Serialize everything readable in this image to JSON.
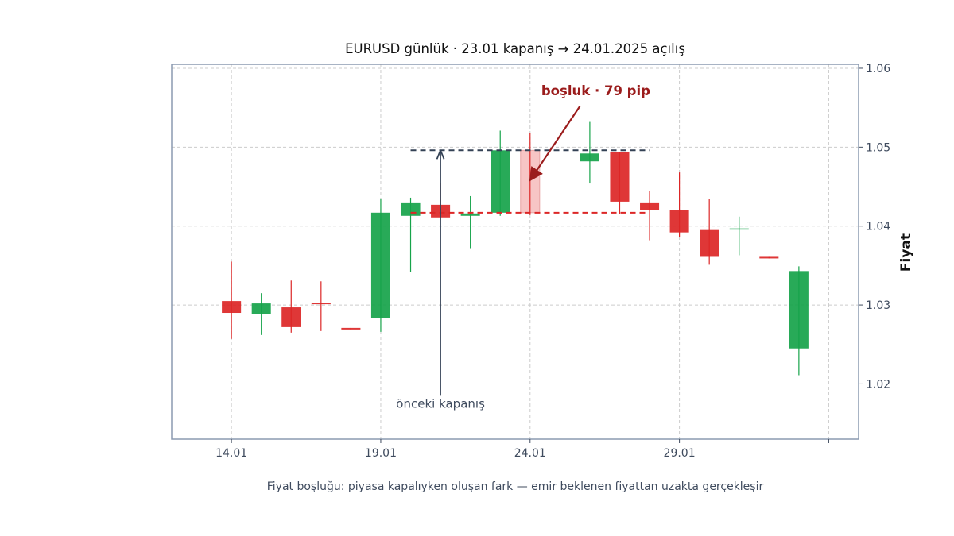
{
  "chart_data": {
    "type": "candlestick",
    "title": "EURUSD günlük · 23.01 kapanış → 24.01.2025 açılış",
    "xlabel": "",
    "ylabel": "Fiyat",
    "caption": "Fiyat boşluğu: piyasa kapalıyken oluşan fark — emir beklenen fiyattan uzakta gerçekleşir",
    "y_axis_side": "right",
    "ylim": [
      1.013,
      1.0605
    ],
    "yticks": [
      1.02,
      1.03,
      1.04,
      1.05,
      1.06
    ],
    "ytick_labels": [
      "1.02",
      "1.03",
      "1.04",
      "1.05",
      "1.06"
    ],
    "xlim": [
      -2,
      21
    ],
    "xticks": [
      0,
      5,
      10,
      15,
      20
    ],
    "xtick_labels": [
      "14.01",
      "19.01",
      "24.01",
      "29.01",
      ""
    ],
    "grid": true,
    "colors": {
      "up": "#16a34a",
      "down": "#dc2626",
      "gap_fill": "#f7c5c5",
      "prev_close_line": "#334155",
      "gap_open_line": "#dc2626",
      "annotation": "#9b1c1c"
    },
    "candles": [
      {
        "x": 0,
        "open": 1.0305,
        "high": 1.0355,
        "low": 1.0257,
        "close": 1.029
      },
      {
        "x": 1,
        "open": 1.0288,
        "high": 1.0315,
        "low": 1.0262,
        "close": 1.0302
      },
      {
        "x": 2,
        "open": 1.0297,
        "high": 1.0331,
        "low": 1.0265,
        "close": 1.0272
      },
      {
        "x": 3,
        "open": 1.0303,
        "high": 1.033,
        "low": 1.0267,
        "close": 1.0301
      },
      {
        "x": 4,
        "open": 1.0271,
        "high": 1.0271,
        "low": 1.0269,
        "close": 1.0269
      },
      {
        "x": 5,
        "open": 1.0283,
        "high": 1.0435,
        "low": 1.0266,
        "close": 1.0417
      },
      {
        "x": 6,
        "open": 1.0413,
        "high": 1.0436,
        "low": 1.0342,
        "close": 1.0429
      },
      {
        "x": 7,
        "open": 1.0427,
        "high": 1.0455,
        "low": 1.041,
        "close": 1.0411
      },
      {
        "x": 8,
        "open": 1.0413,
        "high": 1.0438,
        "low": 1.0372,
        "close": 1.0416
      },
      {
        "x": 9,
        "open": 1.0417,
        "high": 1.0521,
        "low": 1.0413,
        "close": 1.0496
      },
      {
        "x": 12,
        "open": 1.0482,
        "high": 1.0532,
        "low": 1.0454,
        "close": 1.0492
      },
      {
        "x": 13,
        "open": 1.0494,
        "high": 1.0494,
        "low": 1.0415,
        "close": 1.0431
      },
      {
        "x": 14,
        "open": 1.0429,
        "high": 1.0444,
        "low": 1.0382,
        "close": 1.042
      },
      {
        "x": 15,
        "open": 1.042,
        "high": 1.0468,
        "low": 1.0386,
        "close": 1.0392
      },
      {
        "x": 16,
        "open": 1.0395,
        "high": 1.0434,
        "low": 1.0351,
        "close": 1.0361
      },
      {
        "x": 17,
        "open": 1.0397,
        "high": 1.0412,
        "low": 1.0363,
        "close": 1.0397
      },
      {
        "x": 18,
        "open": 1.0361,
        "high": 1.0361,
        "low": 1.0359,
        "close": 1.0359
      },
      {
        "x": 19,
        "open": 1.0245,
        "high": 1.0349,
        "low": 1.0211,
        "close": 1.0343
      }
    ],
    "gap_candle": {
      "x": 10,
      "open": 1.0496,
      "high": 1.0518,
      "low": 1.0414,
      "close": 1.0417
    },
    "reference_lines": [
      {
        "kind": "gap_open",
        "y": 1.0496,
        "x_from": 6,
        "x_to": 14,
        "style": "dashed"
      },
      {
        "kind": "prev_close",
        "y": 1.0417,
        "x_from": 6,
        "x_to": 14,
        "style": "dashed"
      }
    ],
    "annotations": [
      {
        "kind": "gap",
        "text": "boşluk · 79 pip",
        "text_x": 12.2,
        "text_y": 1.0566,
        "arrow_to_x": 10.0,
        "arrow_to_y": 1.0458
      },
      {
        "kind": "prev",
        "text": "önceki kapanış",
        "text_x": 7.0,
        "text_y": 1.017,
        "arrow_from_y": 1.0185,
        "arrow_to_x": 7.0,
        "arrow_to_y": 1.0495
      }
    ]
  }
}
